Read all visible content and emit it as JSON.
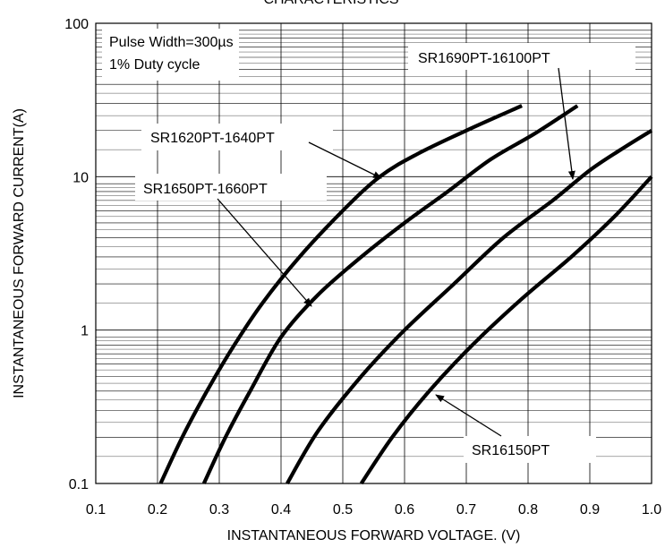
{
  "chart_data": {
    "type": "line",
    "title": "CHARACTERISTICS",
    "xlabel": "INSTANTANEOUS FORWARD VOLTAGE. (V)",
    "ylabel": "INSTANTANEOUS FORWARD CURRENT(A)",
    "xlim": [
      0.1,
      1.0
    ],
    "ylim": [
      0.1,
      100
    ],
    "yscale": "log",
    "grid": true,
    "x_ticks": [
      "0.1",
      "0.2",
      "0.3",
      "0.4",
      "0.5",
      "0.6",
      "0.7",
      "0.8",
      "0.9",
      "1.0"
    ],
    "y_ticks": [
      "0.1",
      "1",
      "10",
      "100"
    ],
    "note_lines": [
      "Pulse Width=300µs",
      "1% Duty cycle"
    ],
    "line_color": "#000000",
    "series": [
      {
        "name": "SR1620PT-1640PT",
        "x": [
          0.205,
          0.24,
          0.28,
          0.32,
          0.37,
          0.43,
          0.5,
          0.56,
          0.62,
          0.7,
          0.79
        ],
        "y": [
          0.1,
          0.2,
          0.4,
          0.75,
          1.5,
          3.0,
          6.0,
          10.0,
          14.0,
          20.0,
          29.0
        ]
      },
      {
        "name": "SR1650PT-1660PT",
        "x": [
          0.275,
          0.31,
          0.35,
          0.4,
          0.46,
          0.53,
          0.6,
          0.67,
          0.74,
          0.81,
          0.88
        ],
        "y": [
          0.1,
          0.2,
          0.4,
          0.9,
          1.7,
          3.0,
          5.0,
          8.0,
          13.0,
          19.0,
          29.0
        ]
      },
      {
        "name": "SR1690PT-16100PT",
        "x": [
          0.41,
          0.46,
          0.53,
          0.6,
          0.68,
          0.76,
          0.84,
          0.9,
          0.95,
          1.0
        ],
        "y": [
          0.1,
          0.22,
          0.5,
          1.0,
          2.0,
          4.0,
          7.0,
          11.0,
          15.0,
          20.0
        ]
      },
      {
        "name": "SR16150PT",
        "x": [
          0.53,
          0.58,
          0.64,
          0.71,
          0.79,
          0.87,
          0.94,
          1.0
        ],
        "y": [
          0.1,
          0.2,
          0.4,
          0.8,
          1.6,
          3.0,
          5.5,
          10.0
        ]
      }
    ],
    "annotations": [
      {
        "label": "SR1620PT-1640PT",
        "target_series": "SR1620PT-1640PT"
      },
      {
        "label": "SR1650PT-1660PT",
        "target_series": "SR1650PT-1660PT"
      },
      {
        "label": "SR1690PT-16100PT",
        "target_series": "SR1690PT-16100PT"
      },
      {
        "label": "SR16150PT",
        "target_series": "SR16150PT"
      }
    ]
  }
}
